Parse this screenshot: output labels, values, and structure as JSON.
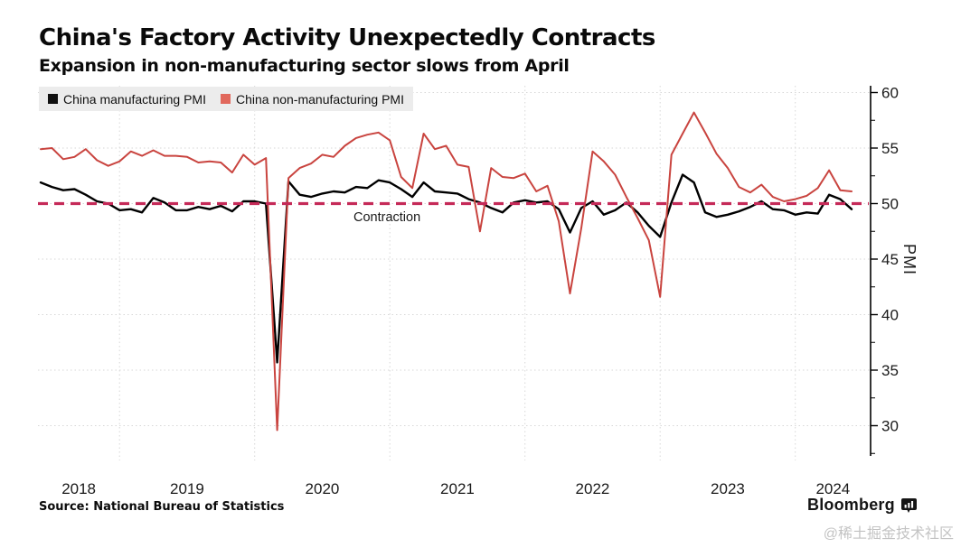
{
  "chart_data": {
    "type": "line",
    "title": "China's Factory Activity Unexpectedly Contracts",
    "subtitle": "Expansion in non-manufacturing sector slows from April",
    "ylabel": "PMI",
    "y_ticks": [
      30,
      35,
      40,
      45,
      50,
      55,
      60
    ],
    "y_minor_tick_step": 2.5,
    "ylim": [
      27.5,
      60.5
    ],
    "x_start": "2018-05",
    "x_end": "2024-05",
    "x_frequency": "monthly",
    "x_tick_labels": [
      "2018",
      "2019",
      "2020",
      "2021",
      "2022",
      "2023",
      "2024"
    ],
    "grid": true,
    "legend_position": "top-left",
    "reference_line": {
      "value": 50,
      "label": "Contraction",
      "color": "#c52a58",
      "style": "dashed"
    },
    "series": [
      {
        "name": "China manufacturing PMI",
        "color": "#000000",
        "legend_color": "#111111",
        "values": [
          51.9,
          51.5,
          51.2,
          51.3,
          50.8,
          50.2,
          50.0,
          49.4,
          49.5,
          49.2,
          50.5,
          50.1,
          49.4,
          49.4,
          49.7,
          49.5,
          49.8,
          49.3,
          50.2,
          50.2,
          50.0,
          35.7,
          52.0,
          50.8,
          50.6,
          50.9,
          51.1,
          51.0,
          51.5,
          51.4,
          52.1,
          51.9,
          51.3,
          50.6,
          51.9,
          51.1,
          51.0,
          50.9,
          50.4,
          50.1,
          49.6,
          49.2,
          50.1,
          50.3,
          50.1,
          50.2,
          49.5,
          47.4,
          49.6,
          50.2,
          49.0,
          49.4,
          50.1,
          49.2,
          48.0,
          47.0,
          50.1,
          52.6,
          51.9,
          49.2,
          48.8,
          49.0,
          49.3,
          49.7,
          50.2,
          49.5,
          49.4,
          49.0,
          49.2,
          49.1,
          50.8,
          50.4,
          49.5
        ]
      },
      {
        "name": "China non-manufacturing PMI",
        "color": "#c9443f",
        "legend_color": "#e1685c",
        "values": [
          54.9,
          55.0,
          54.0,
          54.2,
          54.9,
          53.9,
          53.4,
          53.8,
          54.7,
          54.3,
          54.8,
          54.3,
          54.3,
          54.2,
          53.7,
          53.8,
          53.7,
          52.8,
          54.4,
          53.5,
          54.1,
          29.6,
          52.3,
          53.2,
          53.6,
          54.4,
          54.2,
          55.2,
          55.9,
          56.2,
          56.4,
          55.7,
          52.4,
          51.4,
          56.3,
          54.9,
          55.2,
          53.5,
          53.3,
          47.5,
          53.2,
          52.4,
          52.3,
          52.7,
          51.1,
          51.6,
          48.4,
          41.9,
          47.8,
          54.7,
          53.8,
          52.6,
          50.6,
          48.7,
          46.7,
          41.6,
          54.4,
          56.3,
          58.2,
          56.4,
          54.5,
          53.2,
          51.5,
          51.0,
          51.7,
          50.6,
          50.2,
          50.4,
          50.7,
          51.4,
          53.0,
          51.2,
          51.1
        ]
      }
    ]
  },
  "footer": {
    "source": "Source: National Bureau of Statistics",
    "brand": "Bloomberg",
    "watermark": "@稀土掘金技术社区"
  }
}
